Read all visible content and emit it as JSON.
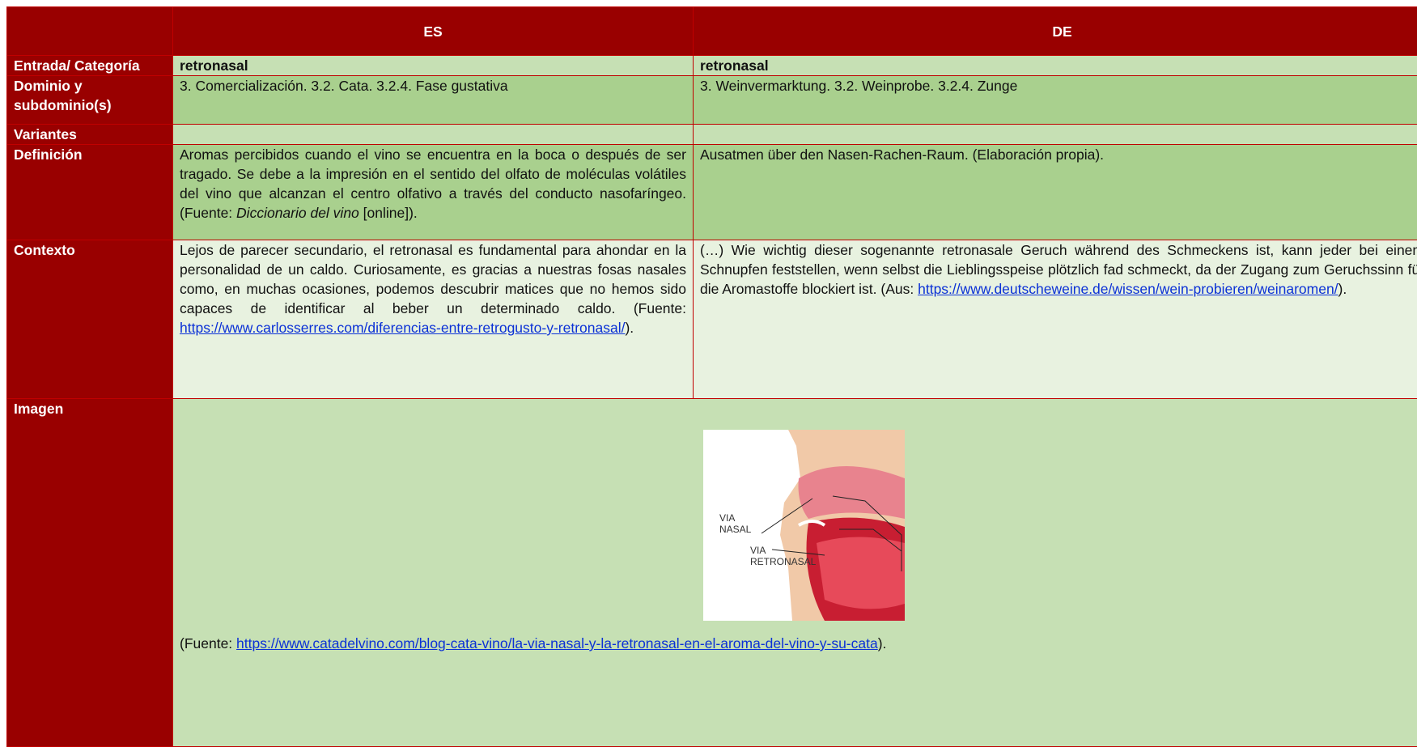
{
  "table": {
    "columns": [
      "ES",
      "DE"
    ],
    "rows": [
      {
        "label": "Entrada/ Categoría",
        "es": "retronasal",
        "de": "retronasal"
      },
      {
        "label": "Dominio y subdominio(s)",
        "es": "3. Comercialización. 3.2. Cata. 3.2.4. Fase gustativa",
        "de": "3. Weinvermarktung. 3.2. Weinprobe. 3.2.4. Zunge"
      },
      {
        "label": "Variantes"
      },
      {
        "label": "Definición",
        "es": {
          "text": "Aromas percibidos cuando el vino se encuentra en la boca o después de ser tragado. Se debe a la impresión en el sentido del olfato de moléculas volátiles del vino que alcanzan el centro olfativo a través del conducto nasofaríngeo. (Fuente: ",
          "italic": "Diccionario del vino",
          "after": " [online])."
        },
        "de": "Ausatmen über den Nasen-Rachen-Raum. (Elaboración propia)."
      },
      {
        "label": "Contexto",
        "es": {
          "text": "Lejos de parecer secundario, el retronasal es fundamental para ahondar en la personalidad de un caldo. Curiosamente, es gracias a nuestras fosas nasales como, en muchas ocasiones, podemos descubrir matices que no hemos sido capaces de identificar al beber un determinado caldo. (Fuente: ",
          "link": "https://www.carlosserres.com/diferencias-entre-retrogusto-y-retronasal/",
          "after": ")."
        },
        "de": {
          "text": "(…) Wie wichtig dieser sogenannte retronasale Geruch während des Schmeckens ist, kann jeder bei einem Schnupfen feststellen, wenn selbst die Lieblingsspeise plötzlich fad schmeckt, da der Zugang zum Geruchssinn für die Aromastoffe blockiert ist. (Aus: ",
          "link": "https://www.deutscheweine.de/wissen/wein-probieren/weinaromen/",
          "after": ")."
        }
      },
      {
        "label": "Imagen",
        "image": {
          "labels": [
            "VIA NASAL",
            "VIA RETRONASAL"
          ]
        },
        "source": {
          "text": "(Fuente: ",
          "link": "https://www.catadelvino.com/blog-cata-vino/la-via-nasal-y-la-retronasal-en-el-aroma-del-vino-y-su-cata",
          "after": ")."
        }
      }
    ]
  }
}
